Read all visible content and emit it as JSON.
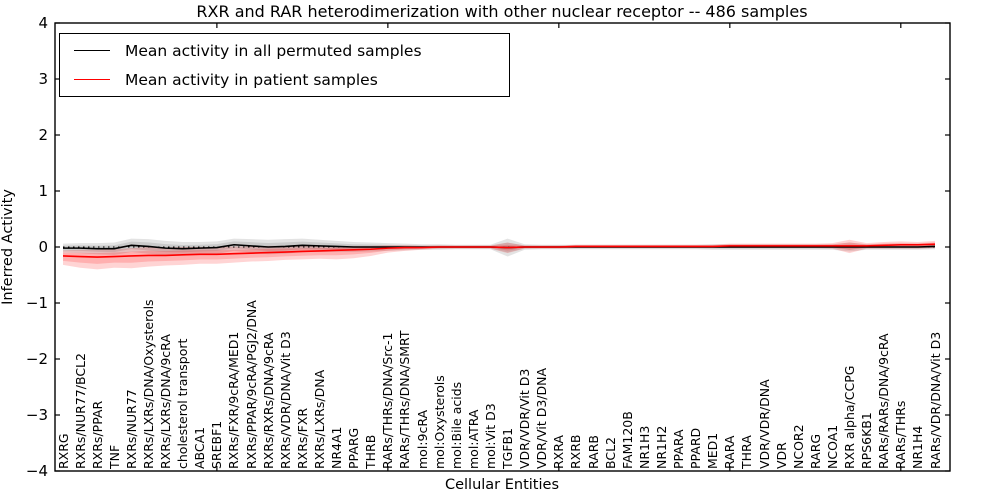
{
  "figure": {
    "title": "RXR and RAR heterodimerization with other nuclear receptor -- 486 samples",
    "xlabel": "Cellular Entities",
    "ylabel": "Inferred Activity",
    "background": "#ffffff"
  },
  "chart_data": {
    "type": "line",
    "title": "RXR and RAR heterodimerization with other nuclear receptor -- 486 samples",
    "xlabel": "Cellular Entities",
    "ylabel": "Inferred Activity",
    "ylim": [
      -4,
      4
    ],
    "yticks": [
      -4,
      -3,
      -2,
      -1,
      0,
      1,
      2,
      3,
      4
    ],
    "xticks": [
      10,
      20,
      30,
      40,
      50
    ],
    "grid": false,
    "legend_position": "upper left",
    "zero_line": {
      "style": "dotted",
      "color": "#000000",
      "y": 0
    },
    "categories": [
      "RXRG",
      "RXRs/NUR77/BCL2",
      "RXRs/PPAR",
      "TNF",
      "RXRs/NUR77",
      "RXRs/LXRs/DNA/Oxysterols",
      "RXRs/LXRs/DNA/9cRA",
      "cholesterol transport",
      "ABCA1",
      "SREBF1",
      "RXRs/FXR/9cRA/MED1",
      "RXRs/PPAR/9cRA/PGJ2/DNA",
      "RXRs/RXRs/DNA/9cRA",
      "RXRs/VDR/DNA/Vit D3",
      "RXRs/FXR",
      "RXRs/LXRs/DNA",
      "NR4A1",
      "PPARG",
      "THRB",
      "RARs/THRs/DNA/Src-1",
      "RARs/THRs/DNA/SMRT",
      "mol:9cRA",
      "mol:Oxysterols",
      "mol:Bile acids",
      "mol:ATRA",
      "mol:Vit D3",
      "TGFB1",
      "VDR/VDR/Vit D3",
      "VDR/Vit D3/DNA",
      "RXRA",
      "RXRB",
      "RARB",
      "BCL2",
      "FAM120B",
      "NR1H3",
      "NR1H2",
      "PPARA",
      "PPARD",
      "MED1",
      "RARA",
      "THRA",
      "VDR/VDR/DNA",
      "VDR",
      "NCOR2",
      "RARG",
      "NCOA1",
      "RXR alpha/CCPG",
      "RPS6KB1",
      "RARs/RARs/DNA/9cRA",
      "RARs/THRs",
      "NR1H4",
      "RARs/VDR/DNA/Vit D3"
    ],
    "series": [
      {
        "name": "Mean activity in all permuted samples",
        "color": "#000000",
        "band_color": "rgba(0,0,0,0.11)",
        "values": [
          -0.02,
          -0.02,
          -0.03,
          -0.03,
          0.03,
          0.01,
          -0.02,
          -0.03,
          -0.02,
          -0.01,
          0.04,
          0.02,
          0,
          0.01,
          0.03,
          0.02,
          0.01,
          0,
          0,
          0,
          0,
          0,
          0,
          0,
          0,
          0,
          -0.01,
          0,
          0,
          0,
          0,
          0,
          0,
          0,
          0,
          0,
          0,
          0,
          0,
          0,
          0,
          0,
          0,
          0,
          0,
          0,
          0,
          0,
          0,
          0,
          0,
          0.01
        ],
        "band_halfwidth": [
          0.08,
          0.09,
          0.1,
          0.11,
          0.12,
          0.13,
          0.13,
          0.12,
          0.11,
          0.11,
          0.11,
          0.12,
          0.13,
          0.13,
          0.12,
          0.11,
          0.1,
          0.09,
          0.08,
          0.07,
          0.06,
          0.05,
          0.05,
          0.04,
          0.04,
          0.04,
          0.16,
          0.05,
          0.04,
          0.04,
          0.04,
          0.04,
          0.04,
          0.04,
          0.04,
          0.04,
          0.04,
          0.04,
          0.05,
          0.05,
          0.05,
          0.05,
          0.05,
          0.05,
          0.05,
          0.05,
          0.08,
          0.05,
          0.05,
          0.05,
          0.05,
          0.05
        ]
      },
      {
        "name": "Mean activity in patient samples",
        "color": "#ff0000",
        "band_color": "rgba(255,0,0,0.17)",
        "values": [
          -0.16,
          -0.17,
          -0.18,
          -0.17,
          -0.16,
          -0.15,
          -0.15,
          -0.14,
          -0.13,
          -0.13,
          -0.12,
          -0.11,
          -0.1,
          -0.09,
          -0.08,
          -0.07,
          -0.06,
          -0.05,
          -0.04,
          -0.02,
          -0.01,
          -0.01,
          0,
          0,
          0,
          0,
          -0.01,
          0,
          0,
          0,
          0.01,
          0.01,
          0.01,
          0.01,
          0.01,
          0.01,
          0.01,
          0.01,
          0.01,
          0.02,
          0.02,
          0.02,
          0.02,
          0.02,
          0.02,
          0.02,
          0.02,
          0.02,
          0.03,
          0.04,
          0.04,
          0.05
        ],
        "band_upper_offset": [
          0.1,
          0.12,
          0.13,
          0.13,
          0.14,
          0.15,
          0.14,
          0.14,
          0.13,
          0.13,
          0.13,
          0.12,
          0.12,
          0.11,
          0.1,
          0.09,
          0.08,
          0.07,
          0.06,
          0.05,
          0.04,
          0.03,
          0.03,
          0.03,
          0.03,
          0.03,
          0.09,
          0.03,
          0.03,
          0.03,
          0.03,
          0.03,
          0.03,
          0.03,
          0.03,
          0.03,
          0.03,
          0.03,
          0.03,
          0.04,
          0.04,
          0.04,
          0.04,
          0.04,
          0.04,
          0.05,
          0.11,
          0.05,
          0.06,
          0.06,
          0.05,
          0.06
        ],
        "band_lower_offset": [
          0.16,
          0.2,
          0.22,
          0.2,
          0.22,
          0.2,
          0.18,
          0.18,
          0.17,
          0.17,
          0.16,
          0.15,
          0.15,
          0.14,
          0.14,
          0.14,
          0.16,
          0.15,
          0.12,
          0.08,
          0.06,
          0.04,
          0.03,
          0.03,
          0.03,
          0.03,
          0.1,
          0.03,
          0.03,
          0.03,
          0.03,
          0.03,
          0.03,
          0.03,
          0.03,
          0.03,
          0.03,
          0.03,
          0.03,
          0.04,
          0.04,
          0.04,
          0.04,
          0.04,
          0.04,
          0.05,
          0.13,
          0.05,
          0.06,
          0.07,
          0.07,
          0.07
        ]
      }
    ]
  }
}
